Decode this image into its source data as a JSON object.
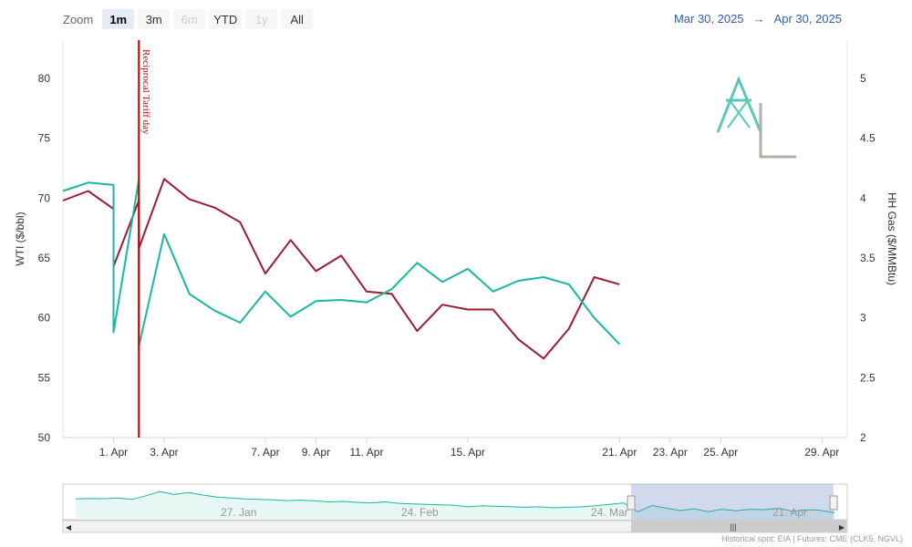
{
  "zoom": {
    "label": "Zoom",
    "buttons": [
      {
        "label": "1m",
        "state": "active"
      },
      {
        "label": "3m",
        "state": "normal"
      },
      {
        "label": "6m",
        "state": "disabled"
      },
      {
        "label": "YTD",
        "state": "normal"
      },
      {
        "label": "1y",
        "state": "disabled"
      },
      {
        "label": "All",
        "state": "normal"
      }
    ]
  },
  "range": {
    "from": "Mar 30, 2025",
    "arrow": "→",
    "to": "Apr 30, 2025"
  },
  "credits": "Historical spot: EIA | Futures: CME (CLK5, NGVL)",
  "colors": {
    "wti": "#9e1b32",
    "hh": "#17b8a0",
    "plotline": "#cc0000",
    "logo_teal": "#5cc9b8",
    "logo_gray": "#b5aea6"
  },
  "logo": {
    "icon": "transmission-tower-icon"
  },
  "chart_data": {
    "type": "line",
    "x_range": [
      "Mar 30, 2025",
      "Apr 30, 2025"
    ],
    "x_ticks": [
      "1. Apr",
      "3. Apr",
      "7. Apr",
      "9. Apr",
      "11. Apr",
      "15. Apr",
      "21. Apr",
      "23. Apr",
      "25. Apr",
      "29. Apr"
    ],
    "y_left": {
      "label": "WTI ($/bbl)",
      "min": 50,
      "max": 80,
      "ticks": [
        "50",
        "55",
        "60",
        "65",
        "70",
        "75",
        "80"
      ]
    },
    "y_right": {
      "label": "HH Gas ($/MMBtu)",
      "min": 2,
      "max": 5,
      "ticks": [
        "2",
        "2.5",
        "3",
        "3.5",
        "4",
        "4.5",
        "5"
      ]
    },
    "plot_lines": [
      {
        "date": "Apr 2, 2025",
        "label": "Reciprocal Tariff day"
      }
    ],
    "series": [
      {
        "name": "WTI",
        "axis": "left",
        "points": [
          [
            "Mar 30, 2025",
            69.8
          ],
          [
            "Mar 31, 2025",
            70.6
          ],
          [
            "Apr 1, 2025",
            69.1
          ],
          [
            "Apr 1, 2025",
            64.3
          ],
          [
            "Apr 2, 2025",
            69.8
          ],
          [
            "Apr 2, 2025",
            65.8
          ],
          [
            "Apr 3, 2025",
            71.6
          ],
          [
            "Apr 4, 2025",
            69.9
          ],
          [
            "Apr 5, 2025",
            69.2
          ],
          [
            "Apr 6, 2025",
            68.0
          ],
          [
            "Apr 7, 2025",
            63.7
          ],
          [
            "Apr 8, 2025",
            66.5
          ],
          [
            "Apr 9, 2025",
            63.9
          ],
          [
            "Apr 10, 2025",
            65.2
          ],
          [
            "Apr 11, 2025",
            62.2
          ],
          [
            "Apr 12, 2025",
            62.0
          ],
          [
            "Apr 13, 2025",
            58.9
          ],
          [
            "Apr 14, 2025",
            61.1
          ],
          [
            "Apr 15, 2025",
            60.7
          ],
          [
            "Apr 16, 2025",
            60.7
          ],
          [
            "Apr 17, 2025",
            58.2
          ],
          [
            "Apr 18, 2025",
            56.6
          ],
          [
            "Apr 19, 2025",
            59.1
          ],
          [
            "Apr 20, 2025",
            63.4
          ],
          [
            "Apr 21, 2025",
            62.8
          ]
        ]
      },
      {
        "name": "HH Gas",
        "axis": "right",
        "points": [
          [
            "Mar 30, 2025",
            4.06
          ],
          [
            "Mar 31, 2025",
            4.13
          ],
          [
            "Apr 1, 2025",
            4.11
          ],
          [
            "Apr 1, 2025",
            2.88
          ],
          [
            "Apr 2, 2025",
            4.15
          ],
          [
            "Apr 2, 2025",
            2.76
          ],
          [
            "Apr 3, 2025",
            3.7
          ],
          [
            "Apr 4, 2025",
            3.2
          ],
          [
            "Apr 5, 2025",
            3.06
          ],
          [
            "Apr 6, 2025",
            2.96
          ],
          [
            "Apr 7, 2025",
            3.22
          ],
          [
            "Apr 8, 2025",
            3.01
          ],
          [
            "Apr 9, 2025",
            3.14
          ],
          [
            "Apr 10, 2025",
            3.15
          ],
          [
            "Apr 11, 2025",
            3.13
          ],
          [
            "Apr 12, 2025",
            3.24
          ],
          [
            "Apr 13, 2025",
            3.46
          ],
          [
            "Apr 14, 2025",
            3.3
          ],
          [
            "Apr 15, 2025",
            3.41
          ],
          [
            "Apr 16, 2025",
            3.22
          ],
          [
            "Apr 17, 2025",
            3.31
          ],
          [
            "Apr 18, 2025",
            3.34
          ],
          [
            "Apr 19, 2025",
            3.28
          ],
          [
            "Apr 20, 2025",
            3.0
          ],
          [
            "Apr 21, 2025",
            2.78
          ]
        ]
      }
    ],
    "navigator": {
      "labels": [
        "27. Jan",
        "24. Feb",
        "24. Mar",
        "21. Apr"
      ],
      "values": [
        0.62,
        0.64,
        0.63,
        0.66,
        0.6,
        0.75,
        0.92,
        0.8,
        0.88,
        0.78,
        0.7,
        0.66,
        0.62,
        0.6,
        0.58,
        0.55,
        0.57,
        0.54,
        0.5,
        0.52,
        0.48,
        0.46,
        0.5,
        0.44,
        0.42,
        0.4,
        0.38,
        0.36,
        0.3,
        0.34,
        0.32,
        0.3,
        0.28,
        0.3,
        0.26,
        0.28,
        0.3,
        0.34,
        0.4,
        0.46,
        0.1,
        0.35,
        0.25,
        0.15,
        0.22,
        0.1,
        0.2,
        0.14,
        0.2,
        0.18,
        0.24,
        0.12,
        0.18,
        0.16,
        0.06
      ]
    }
  }
}
